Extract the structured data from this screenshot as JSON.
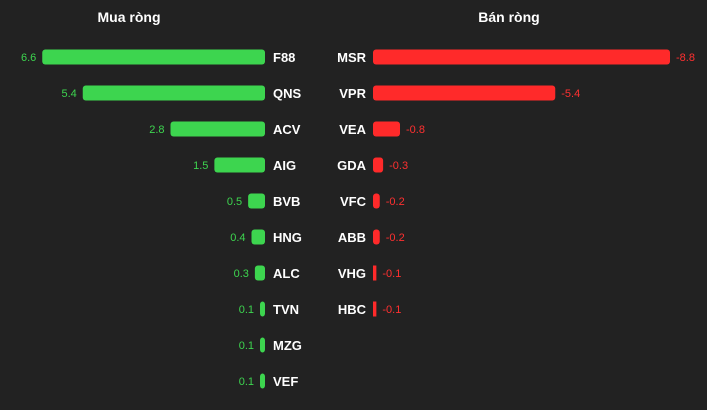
{
  "chart_data": [
    {
      "type": "bar",
      "title": "Mua ròng",
      "orientation": "horizontal",
      "color": "#3dd54f",
      "categories": [
        "F88",
        "QNS",
        "ACV",
        "AIG",
        "BVB",
        "HNG",
        "ALC",
        "TVN",
        "MZG",
        "VEF"
      ],
      "values": [
        6.6,
        5.4,
        2.8,
        1.5,
        0.5,
        0.4,
        0.3,
        0.1,
        0.1,
        0.1
      ],
      "labels": [
        "6.6",
        "5.4",
        "2.8",
        "1.5",
        "0.5",
        "0.4",
        "0.3",
        "0.1",
        "0.1",
        "0.1"
      ]
    },
    {
      "type": "bar",
      "title": "Bán ròng",
      "orientation": "horizontal",
      "color": "#ff2a2a",
      "categories": [
        "MSR",
        "VPR",
        "VEA",
        "GDA",
        "VFC",
        "ABB",
        "VHG",
        "HBC"
      ],
      "values": [
        -8.8,
        -5.4,
        -0.8,
        -0.3,
        -0.2,
        -0.2,
        -0.1,
        -0.1
      ],
      "labels": [
        "-8.8",
        "-5.4",
        "-0.8",
        "-0.3",
        "-0.2",
        "-0.2",
        "-0.1",
        "-0.1"
      ]
    }
  ]
}
